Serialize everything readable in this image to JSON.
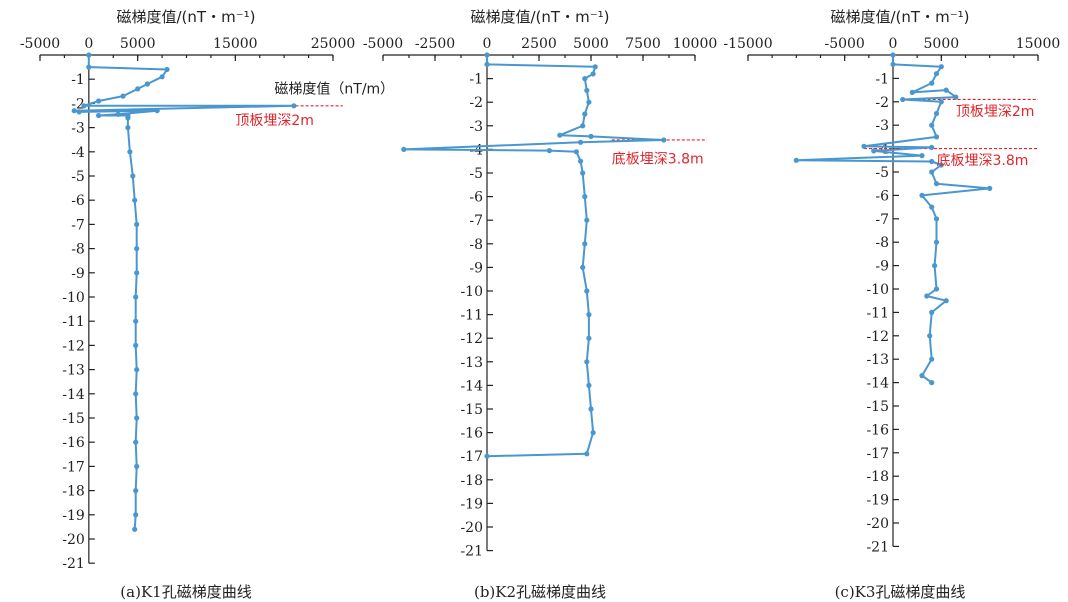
{
  "colors": {
    "series": "#4a97d0",
    "annotation": "#e0262c",
    "axis": "#222222"
  },
  "chart_data": [
    {
      "type": "line",
      "title": "磁梯度值/(nT・m⁻¹)",
      "caption": "(a)K1孔磁梯度曲线",
      "xlim": [
        -5000,
        25000
      ],
      "xticks": [
        -5000,
        0,
        5000,
        15000,
        25000
      ],
      "ylim": [
        -21,
        0
      ],
      "yticks": [
        -1,
        -2,
        -3,
        -4,
        -5,
        -6,
        -7,
        -8,
        -9,
        -10,
        -11,
        -12,
        -13,
        -14,
        -15,
        -16,
        -17,
        -18,
        -19,
        -20,
        -21
      ],
      "annotations": [
        {
          "text": "磁梯度值（nT/m）",
          "x": 19000,
          "y": -1.6,
          "color": "black"
        },
        {
          "text": "顶板埋深2m",
          "x": 15000,
          "y": -2.9,
          "color": "red"
        }
      ],
      "reference_lines": [
        {
          "y": -2.1,
          "x_from": 14000,
          "x_to": 26000
        }
      ],
      "series": [
        {
          "points": [
            [
              0,
              0
            ],
            [
              0,
              -0.5
            ],
            [
              8000,
              -0.6
            ],
            [
              7500,
              -0.9
            ],
            [
              6000,
              -1.2
            ],
            [
              5000,
              -1.4
            ],
            [
              3500,
              -1.7
            ],
            [
              1000,
              -1.9
            ],
            [
              -500,
              -2.1
            ],
            [
              21000,
              -2.1
            ],
            [
              -1500,
              -2.3
            ],
            [
              -1000,
              -2.35
            ],
            [
              7000,
              -2.3
            ],
            [
              3000,
              -2.45
            ],
            [
              1000,
              -2.5
            ],
            [
              4000,
              -2.5
            ],
            [
              4000,
              -2.6
            ],
            [
              4000,
              -3.0
            ],
            [
              4200,
              -4.0
            ],
            [
              4500,
              -5.0
            ],
            [
              4700,
              -6.0
            ],
            [
              4900,
              -7.0
            ],
            [
              4900,
              -8.0
            ],
            [
              4900,
              -9.0
            ],
            [
              4800,
              -10.0
            ],
            [
              4800,
              -11.0
            ],
            [
              4800,
              -12.0
            ],
            [
              4900,
              -13.0
            ],
            [
              4800,
              -14.0
            ],
            [
              4900,
              -15.0
            ],
            [
              4800,
              -16.0
            ],
            [
              4900,
              -17.0
            ],
            [
              4800,
              -18.0
            ],
            [
              4800,
              -19.0
            ],
            [
              4700,
              -19.6
            ]
          ]
        }
      ]
    },
    {
      "type": "line",
      "title": "磁梯度值/(nT・m⁻¹)",
      "caption": "(b)K2孔磁梯度曲线",
      "xlim": [
        -5000,
        10000
      ],
      "xticks": [
        -5000,
        -2500,
        0,
        2500,
        5000,
        7500,
        10000
      ],
      "ylim": [
        -21,
        0
      ],
      "yticks": [
        -1,
        -2,
        -3,
        -4,
        -5,
        -6,
        -7,
        -8,
        -9,
        -10,
        -11,
        -12,
        -13,
        -14,
        -15,
        -16,
        -17,
        -18,
        -19,
        -20,
        -21
      ],
      "annotations": [
        {
          "text": "底板埋深3.8m",
          "x": 6000,
          "y": -4.6,
          "color": "red"
        }
      ],
      "reference_lines": [
        {
          "y": -3.6,
          "x_from": 6000,
          "x_to": 11000
        }
      ],
      "series": [
        {
          "points": [
            [
              0,
              0
            ],
            [
              0,
              -0.4
            ],
            [
              5200,
              -0.5
            ],
            [
              5100,
              -0.8
            ],
            [
              4700,
              -1.0
            ],
            [
              4800,
              -1.5
            ],
            [
              4900,
              -2.0
            ],
            [
              4700,
              -2.5
            ],
            [
              4600,
              -3.0
            ],
            [
              3500,
              -3.4
            ],
            [
              5000,
              -3.45
            ],
            [
              8500,
              -3.6
            ],
            [
              4500,
              -3.7
            ],
            [
              -4000,
              -4.0
            ],
            [
              3000,
              -4.05
            ],
            [
              4300,
              -4.1
            ],
            [
              4500,
              -4.5
            ],
            [
              4600,
              -5.0
            ],
            [
              4700,
              -6.0
            ],
            [
              4800,
              -7.0
            ],
            [
              4700,
              -8.0
            ],
            [
              4600,
              -9.0
            ],
            [
              4800,
              -10.0
            ],
            [
              4900,
              -11.0
            ],
            [
              4900,
              -12.0
            ],
            [
              4800,
              -13.0
            ],
            [
              4900,
              -14.0
            ],
            [
              5000,
              -15.0
            ],
            [
              5100,
              -16.0
            ],
            [
              4800,
              -16.9
            ],
            [
              0,
              -17.0
            ]
          ]
        }
      ]
    },
    {
      "type": "line",
      "title": "磁梯度值/(nT・m⁻¹)",
      "caption": "(c)K3孔磁梯度曲线",
      "xlim": [
        -15000,
        15000
      ],
      "xticks": [
        -15000,
        -5000,
        0,
        5000,
        15000
      ],
      "ylim": [
        -21,
        0
      ],
      "yticks": [
        -1,
        -2,
        -3,
        -4,
        -5,
        -6,
        -7,
        -8,
        -9,
        -10,
        -11,
        -12,
        -13,
        -14,
        -15,
        -16,
        -17,
        -18,
        -19,
        -20,
        -21
      ],
      "annotations": [
        {
          "text": "顶板埋深2m",
          "x": 6500,
          "y": -2.6,
          "color": "red"
        },
        {
          "text": "底板埋深3.8m",
          "x": 4500,
          "y": -4.7,
          "color": "red"
        }
      ],
      "reference_lines": [
        {
          "y": -1.9,
          "x_from": 1000,
          "x_to": 15000
        },
        {
          "y": -4.0,
          "x_from": -3000,
          "x_to": 15000
        }
      ],
      "series": [
        {
          "points": [
            [
              0,
              0
            ],
            [
              0,
              -0.4
            ],
            [
              5000,
              -0.5
            ],
            [
              4500,
              -0.8
            ],
            [
              4000,
              -1.2
            ],
            [
              2000,
              -1.6
            ],
            [
              5500,
              -1.5
            ],
            [
              6500,
              -1.8
            ],
            [
              1000,
              -1.9
            ],
            [
              5000,
              -2.0
            ],
            [
              4500,
              -2.5
            ],
            [
              4000,
              -3.0
            ],
            [
              4500,
              -3.5
            ],
            [
              -3000,
              -3.9
            ],
            [
              4000,
              -3.95
            ],
            [
              -2000,
              -4.1
            ],
            [
              3000,
              -4.3
            ],
            [
              -10000,
              -4.5
            ],
            [
              4000,
              -4.55
            ],
            [
              5000,
              -4.7
            ],
            [
              4000,
              -5.0
            ],
            [
              4500,
              -5.5
            ],
            [
              10000,
              -5.7
            ],
            [
              3000,
              -6.0
            ],
            [
              4000,
              -6.5
            ],
            [
              4500,
              -7.0
            ],
            [
              4500,
              -8.0
            ],
            [
              4300,
              -9.0
            ],
            [
              4500,
              -10.0
            ],
            [
              3500,
              -10.3
            ],
            [
              5500,
              -10.5
            ],
            [
              4000,
              -11.0
            ],
            [
              3800,
              -12.0
            ],
            [
              4000,
              -13.0
            ],
            [
              3000,
              -13.7
            ],
            [
              4000,
              -14.0
            ]
          ]
        }
      ]
    }
  ]
}
